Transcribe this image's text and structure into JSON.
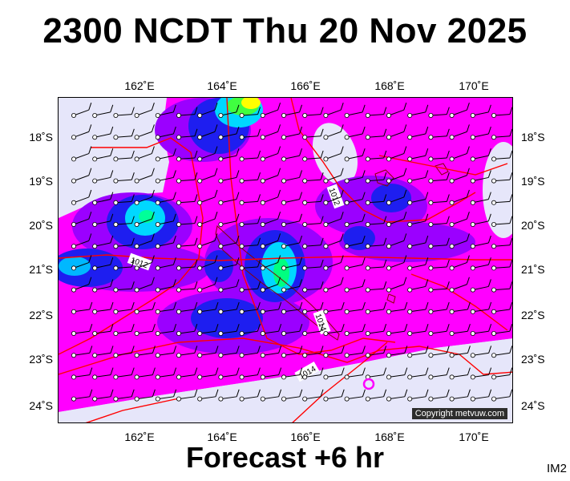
{
  "header": {
    "title": "2300 NCDT Thu 20 Nov 2025"
  },
  "footer": {
    "forecast": "Forecast +6 hr",
    "code": "IM2"
  },
  "map": {
    "copyright": "Copyright metvuw.com",
    "lon_labels": [
      "162˚E",
      "164˚E",
      "166˚E",
      "168˚E",
      "170˚E"
    ],
    "lat_labels": [
      "18˚S",
      "19˚S",
      "20˚S",
      "21˚S",
      "22˚S",
      "23˚S",
      "24˚S"
    ],
    "isobar_labels": [
      "1012",
      "1012",
      "1014",
      "1014"
    ],
    "colors": {
      "background": "#e6e6fa",
      "magenta": "#ff00ff",
      "violet": "#9b00ff",
      "blue": "#1e1ef0",
      "cyan": "#00d8ff",
      "green": "#00ff80",
      "yellow": "#ffff00",
      "isobar": "#ff0000"
    }
  }
}
